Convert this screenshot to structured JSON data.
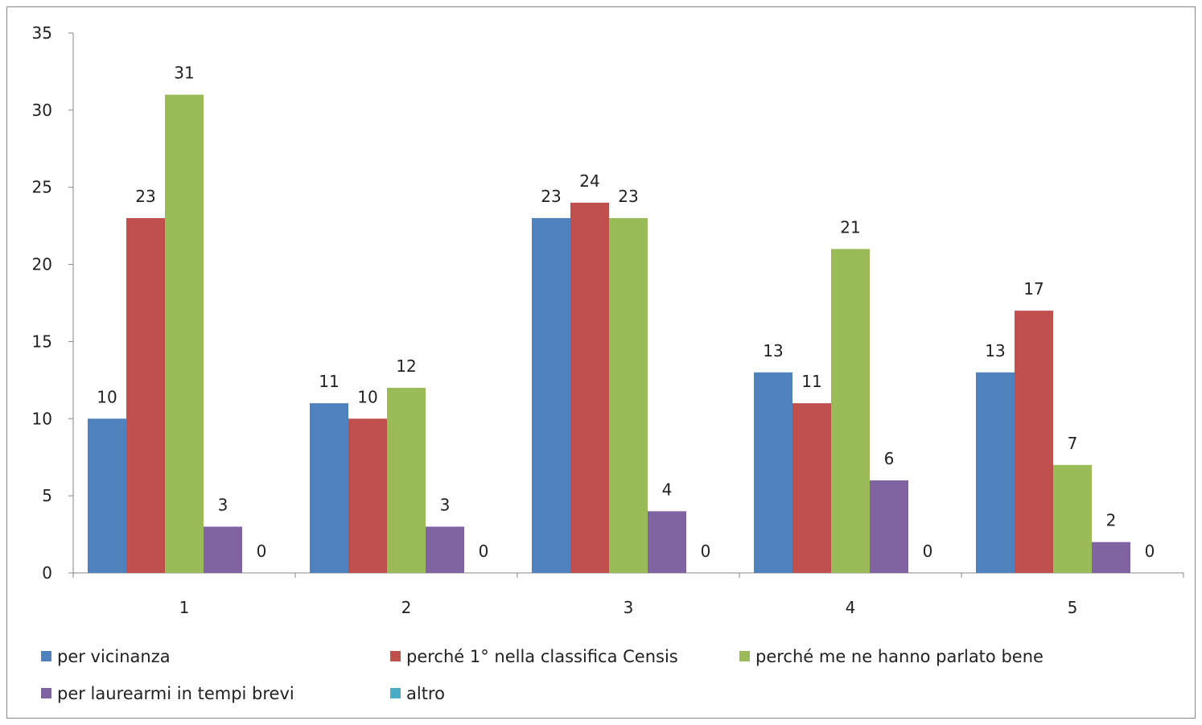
{
  "chart_data": {
    "type": "bar",
    "title": "",
    "xlabel": "",
    "ylabel": "",
    "categories": [
      "1",
      "2",
      "3",
      "4",
      "5"
    ],
    "ylim": [
      0,
      35
    ],
    "yticks": [
      0,
      5,
      10,
      15,
      20,
      25,
      30,
      35
    ],
    "grid": false,
    "legend_position": "bottom",
    "series": [
      {
        "name": "per vicinanza",
        "color": "#4F81BD",
        "values": [
          10,
          11,
          23,
          13,
          13
        ]
      },
      {
        "name": "perché 1° nella classifica Censis",
        "color": "#C0504D",
        "values": [
          23,
          10,
          24,
          11,
          17
        ]
      },
      {
        "name": "perché me ne hanno parlato bene",
        "color": "#9BBB59",
        "values": [
          31,
          12,
          23,
          21,
          7
        ]
      },
      {
        "name": "per laurearmi in tempi brevi",
        "color": "#8064A2",
        "values": [
          3,
          3,
          4,
          6,
          2
        ]
      },
      {
        "name": "altro",
        "color": "#4BACC6",
        "values": [
          0,
          0,
          0,
          0,
          0
        ]
      }
    ]
  }
}
